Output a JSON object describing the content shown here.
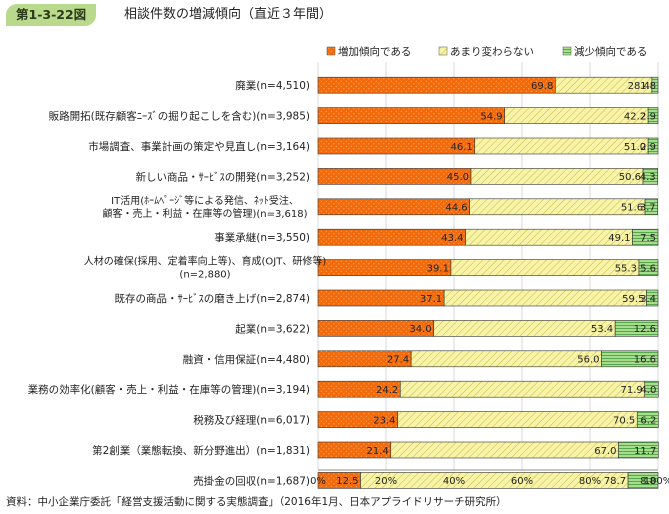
{
  "header": {
    "figure_no": "第1-3-22図",
    "title": "相談件数の増減傾向（直近３年間）"
  },
  "source": "資料：中小企業庁委託「経営支援活動に関する実態調査」（2016年1月、日本アプライドリサーチ研究所）",
  "colors": {
    "increase": "#f26a0a",
    "same": "#f5f29a",
    "decrease": "#9ed884",
    "header_badge": "#b9d98c"
  },
  "chart_data": {
    "type": "bar",
    "orientation": "horizontal-stacked-100",
    "title": "相談件数の増減傾向（直近３年間）",
    "legend": {
      "placement": "top",
      "items": [
        "増加傾向である",
        "あまり変わらない",
        "減少傾向である"
      ]
    },
    "x_ticks": [
      "0%",
      "20%",
      "40%",
      "60%",
      "80%",
      "100%"
    ],
    "xlim": [
      0,
      100
    ],
    "categories": [
      {
        "label": "廃業(n=4,510)"
      },
      {
        "label": "販路開拓(既存顧客ﾆｰｽﾞの掘り起こしを含む)(n=3,985)"
      },
      {
        "label": "市場調査、事業計画の策定や見直し(n=3,164)"
      },
      {
        "label": "新しい商品・ｻｰﾋﾞｽの開発(n=3,252)"
      },
      {
        "label_lines": [
          "IT活用(ﾎｰﾑﾍﾟｰｼﾞ等による発信、ﾈｯﾄ受注、",
          "顧客・売上・利益・在庫等の管理)(n=3,618)"
        ]
      },
      {
        "label": "事業承継(n=3,550)"
      },
      {
        "label_lines": [
          "人材の確保(採用、定着率向上等)、育成(OJT、研修等)",
          "(n=2,880)"
        ]
      },
      {
        "label": "既存の商品・ｻｰﾋﾞｽの磨き上げ(n=2,874)"
      },
      {
        "label": "起業(n=3,622)"
      },
      {
        "label": "融資・信用保証(n=4,480)"
      },
      {
        "label": "業務の効率化(顧客・売上・利益・在庫等の管理)(n=3,194)"
      },
      {
        "label": "税務及び経理(n=6,017)"
      },
      {
        "label": "第2創業（業態転換、新分野進出）(n=1,831)"
      },
      {
        "label": "売掛金の回収(n=1,687)"
      }
    ],
    "series": [
      {
        "name": "増加傾向である",
        "labels": [
          "69.8",
          "54.9",
          "46.1",
          "45.0",
          "44.6",
          "43.4",
          "39.1",
          "37.1",
          "34.0",
          "27.4",
          "24.2",
          "23.4",
          "21.4",
          "12.5"
        ],
        "values": [
          69.8,
          54.9,
          46.1,
          45.0,
          44.6,
          43.4,
          39.1,
          37.1,
          34.0,
          27.4,
          24.2,
          23.4,
          21.4,
          12.5
        ]
      },
      {
        "name": "あまり変わらない",
        "labels": [
          "28.4",
          "42.2",
          "51.0",
          "50.6",
          "51.6",
          "49.1",
          "55.3",
          "59.5",
          "53.4",
          "56.0",
          "71.9",
          "70.5",
          "67.0",
          "78.7"
        ],
        "values": [
          28.4,
          42.2,
          51.0,
          50.6,
          51.6,
          49.1,
          55.3,
          59.5,
          53.4,
          56.0,
          71.9,
          70.5,
          67.0,
          78.7
        ]
      },
      {
        "name": "減少傾向である",
        "labels": [
          "1.8",
          "2.9",
          "2.9",
          "4.3",
          "3.7",
          "7.5",
          "5.6",
          "3.4",
          "12.6",
          "16.6",
          "4.0",
          "6.2",
          "11.7",
          "8.8"
        ],
        "values": [
          1.8,
          2.9,
          2.9,
          4.3,
          3.7,
          7.5,
          5.6,
          3.4,
          12.6,
          16.6,
          4.0,
          6.2,
          11.7,
          8.8
        ]
      }
    ]
  }
}
